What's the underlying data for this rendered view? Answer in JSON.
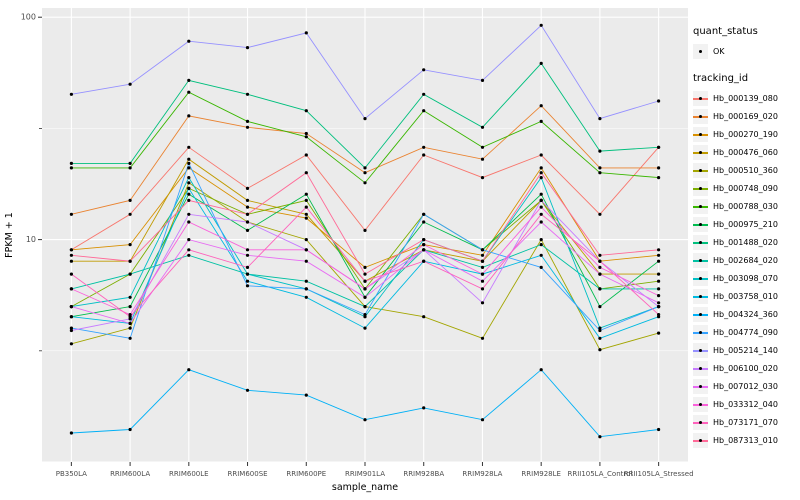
{
  "chart_data": {
    "type": "line",
    "title": "",
    "xlabel": "sample_name",
    "ylabel": "FPKM + 1",
    "y_scale": "log10",
    "ylim": [
      1,
      110
    ],
    "y_major_ticks": [
      10,
      100
    ],
    "y_major_tick_labels": [
      "10",
      "100"
    ],
    "y_minor_ticks": [
      3.162,
      31.62
    ],
    "grid": true,
    "panel_bg": "#ebebeb",
    "grid_color": "#ffffff",
    "point_color": "#000000",
    "axis_text_color": "#4d4d4d",
    "legend_position": "right",
    "categories": [
      "PB350LA",
      "RRIM600LA",
      "RRIM600LE",
      "RRIM600SE",
      "RRIM600PE",
      "RRIM901LA",
      "RRIM928BA",
      "RRIM928LA",
      "RRIM928LE",
      "RRII105LA_Control",
      "RRII105LA_Stressed"
    ],
    "series": [
      {
        "name": "Hb_000139_080",
        "color": "#F8766D",
        "values": [
          9,
          13,
          26,
          17,
          24,
          11,
          24,
          19,
          24,
          13,
          26
        ]
      },
      {
        "name": "Hb_000169_020",
        "color": "#EA8331",
        "values": [
          13,
          15,
          36,
          32,
          30,
          20,
          26,
          23,
          40,
          21,
          21
        ]
      },
      {
        "name": "Hb_000270_190",
        "color": "#D89000",
        "values": [
          9,
          9.5,
          21,
          14,
          12.5,
          7.5,
          9.5,
          8.5,
          21,
          8,
          8.5
        ]
      },
      {
        "name": "Hb_000476_060",
        "color": "#C09B00",
        "values": [
          8,
          8,
          23,
          15,
          13,
          6.5,
          9,
          8,
          15,
          7,
          7
        ]
      },
      {
        "name": "Hb_000510_360",
        "color": "#A3A500",
        "values": [
          3.4,
          4,
          18,
          12,
          10,
          5,
          4.5,
          3.6,
          10,
          3.2,
          3.8
        ]
      },
      {
        "name": "Hb_000748_090",
        "color": "#7CAE00",
        "values": [
          5,
          7,
          17,
          13,
          15,
          6,
          13,
          9,
          15,
          6,
          6.5
        ]
      },
      {
        "name": "Hb_000788_030",
        "color": "#39B600",
        "values": [
          21,
          21,
          46,
          34,
          29,
          18,
          38,
          26,
          34,
          20,
          19
        ]
      },
      {
        "name": "Hb_000975_210",
        "color": "#00BB4E",
        "values": [
          4.5,
          5,
          16,
          11,
          16,
          5.5,
          12,
          9,
          16,
          5,
          8
        ]
      },
      {
        "name": "Hb_001488_020",
        "color": "#00BF7D",
        "values": [
          22,
          22,
          52,
          45,
          38,
          21,
          45,
          32,
          62,
          25,
          26
        ]
      },
      {
        "name": "Hb_002684_020",
        "color": "#00C1A3",
        "values": [
          6,
          7,
          8.5,
          7,
          6.5,
          5,
          9,
          7.5,
          9.5,
          6,
          6
        ]
      },
      {
        "name": "Hb_003098_070",
        "color": "#00BFC4",
        "values": [
          5,
          5.5,
          19,
          7,
          6,
          4.5,
          10,
          8,
          19,
          4,
          5
        ]
      },
      {
        "name": "Hb_003758_010",
        "color": "#00BAE0",
        "values": [
          4.5,
          4.2,
          17,
          6.5,
          5.5,
          4,
          8,
          7,
          8.5,
          3.6,
          4.5
        ]
      },
      {
        "name": "Hb_004324_360",
        "color": "#00B0F6",
        "values": [
          1.35,
          1.4,
          2.6,
          2.1,
          2.0,
          1.55,
          1.75,
          1.55,
          2.6,
          1.3,
          1.4
        ]
      },
      {
        "name": "Hb_004774_090",
        "color": "#35A2FF",
        "values": [
          4,
          3.6,
          22,
          6.2,
          6,
          4.6,
          13,
          9,
          7.5,
          3.9,
          5
        ]
      },
      {
        "name": "Hb_005214_140",
        "color": "#9590FF",
        "values": [
          45,
          50,
          78,
          73,
          85,
          35,
          58,
          52,
          92,
          35,
          42
        ]
      },
      {
        "name": "Hb_006100_020",
        "color": "#C77CFF",
        "values": [
          3.9,
          4.4,
          13,
          12,
          9,
          6,
          9,
          5.2,
          15,
          8,
          5
        ]
      },
      {
        "name": "Hb_007012_030",
        "color": "#E76BF3",
        "values": [
          5,
          4.2,
          10,
          8.5,
          8,
          5.5,
          9,
          6.5,
          12,
          7,
          5.2
        ]
      },
      {
        "name": "Hb_033312_040",
        "color": "#FA62DB",
        "values": [
          6,
          4.6,
          12,
          9,
          9,
          6,
          9.5,
          7,
          14,
          7.5,
          5.6
        ]
      },
      {
        "name": "Hb_073171_070",
        "color": "#FF62BC",
        "values": [
          7,
          4.5,
          9,
          7.5,
          14,
          6.5,
          8,
          6,
          13,
          8,
          4.6
        ]
      },
      {
        "name": "Hb_087313_010",
        "color": "#FF6A98",
        "values": [
          8.5,
          8,
          15,
          13,
          20,
          7,
          10,
          8,
          20,
          8.5,
          9
        ]
      }
    ]
  },
  "legend": {
    "quant_status_title": "quant_status",
    "quant_status_items": [
      {
        "label": "OK"
      }
    ],
    "tracking_title": "tracking_id"
  }
}
